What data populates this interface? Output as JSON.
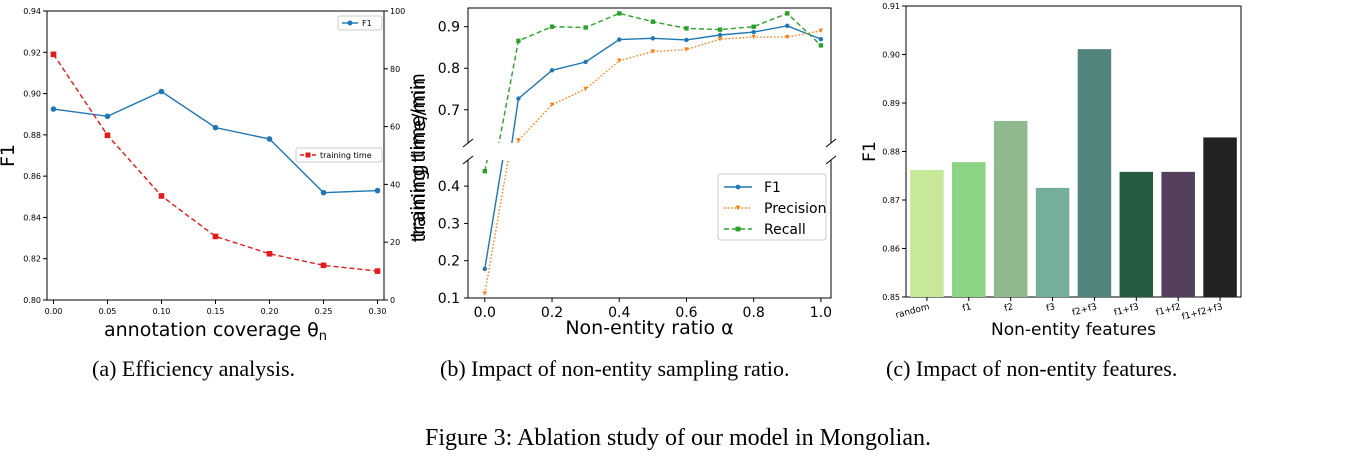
{
  "figure_caption": "Figure 3: Ablation study of our model in Mongolian.",
  "captions": {
    "a": "(a)  Efficiency analysis.",
    "b": "(b)  Impact of non-entity sampling ratio.",
    "c": "(c)  Impact of non-entity features."
  },
  "chart_data": [
    {
      "id": "a",
      "type": "line",
      "x": [
        0.0,
        0.05,
        0.1,
        0.15,
        0.2,
        0.25,
        0.3
      ],
      "x_tick_labels": [
        "0.00",
        "0.05",
        "0.10",
        "0.15",
        "0.20",
        "0.25",
        "0.30"
      ],
      "xlabel": "annotation coverage θ",
      "xlabel_sub": "n",
      "ylabel": "F1",
      "y2label": "training time/min",
      "ylim": [
        0.8,
        0.94
      ],
      "y_ticks": [
        "0.80",
        "0.82",
        "0.84",
        "0.86",
        "0.88",
        "0.90",
        "0.92",
        "0.94"
      ],
      "y2lim": [
        0,
        100
      ],
      "y2_ticks": [
        "0",
        "20",
        "40",
        "60",
        "80",
        "100"
      ],
      "series": [
        {
          "name": "F1",
          "axis": "left",
          "color": "#1f77b4",
          "marker": "circle",
          "style": "solid",
          "values": [
            0.8925,
            0.889,
            0.901,
            0.8835,
            0.878,
            0.852,
            0.853
          ]
        },
        {
          "name": "training time",
          "axis": "right",
          "color": "#e41a1c",
          "marker": "square",
          "style": "dashed",
          "values": [
            85,
            57,
            36,
            22,
            16,
            12,
            10
          ]
        }
      ],
      "legend_positions": [
        "top-right",
        "middle-right"
      ]
    },
    {
      "id": "b",
      "type": "line",
      "broken_y_axis": true,
      "x": [
        0.0,
        0.1,
        0.2,
        0.3,
        0.4,
        0.5,
        0.6,
        0.7,
        0.8,
        0.9,
        1.0
      ],
      "x_tick_labels": [
        "0.0",
        "0.2",
        "0.4",
        "0.6",
        "0.8",
        "1.0"
      ],
      "x_tick_values": [
        0.0,
        0.2,
        0.4,
        0.6,
        0.8,
        1.0
      ],
      "xlabel": "Non-entity ratio α",
      "ylabel": "training time/min",
      "upper_ylim": [
        0.62,
        0.945
      ],
      "upper_y_ticks": [
        "0.7",
        "0.8",
        "0.9"
      ],
      "lower_ylim": [
        0.1,
        0.47
      ],
      "lower_y_ticks": [
        "0.1",
        "0.2",
        "0.3",
        "0.4"
      ],
      "series": [
        {
          "name": "F1",
          "color": "#1f77b4",
          "marker": "circle",
          "style": "solid",
          "values": [
            0.178,
            0.727,
            0.795,
            0.815,
            0.869,
            0.872,
            0.868,
            0.88,
            0.887,
            0.902,
            0.87
          ]
        },
        {
          "name": "Precision",
          "color": "#ff7f0e",
          "marker": "triangle-down",
          "style": "dotted",
          "values": [
            0.112,
            0.626,
            0.712,
            0.75,
            0.818,
            0.84,
            0.845,
            0.87,
            0.875,
            0.875,
            0.89
          ]
        },
        {
          "name": "Recall",
          "color": "#2ca02c",
          "marker": "square",
          "style": "dashed",
          "values": [
            0.44,
            0.866,
            0.9,
            0.898,
            0.932,
            0.912,
            0.896,
            0.893,
            0.9,
            0.932,
            0.855
          ]
        }
      ],
      "legend_position": "lower-right"
    },
    {
      "id": "c",
      "type": "bar",
      "categories": [
        "random",
        "f1",
        "f2",
        "f3",
        "f2+f3",
        "f1+f3",
        "f1+f2",
        "f1+f2+f3"
      ],
      "values": [
        0.8762,
        0.8778,
        0.8863,
        0.8725,
        0.9011,
        0.8758,
        0.8758,
        0.8829
      ],
      "colors": [
        "#c6e898",
        "#8bd486",
        "#8fba8e",
        "#75ae9a",
        "#50847c",
        "#265c40",
        "#543f5c",
        "#212224"
      ],
      "xlabel": "Non-entity features",
      "ylabel": "F1",
      "ylim": [
        0.85,
        0.91
      ],
      "y_ticks": [
        "0.85",
        "0.86",
        "0.87",
        "0.88",
        "0.89",
        "0.90",
        "0.91"
      ]
    }
  ]
}
